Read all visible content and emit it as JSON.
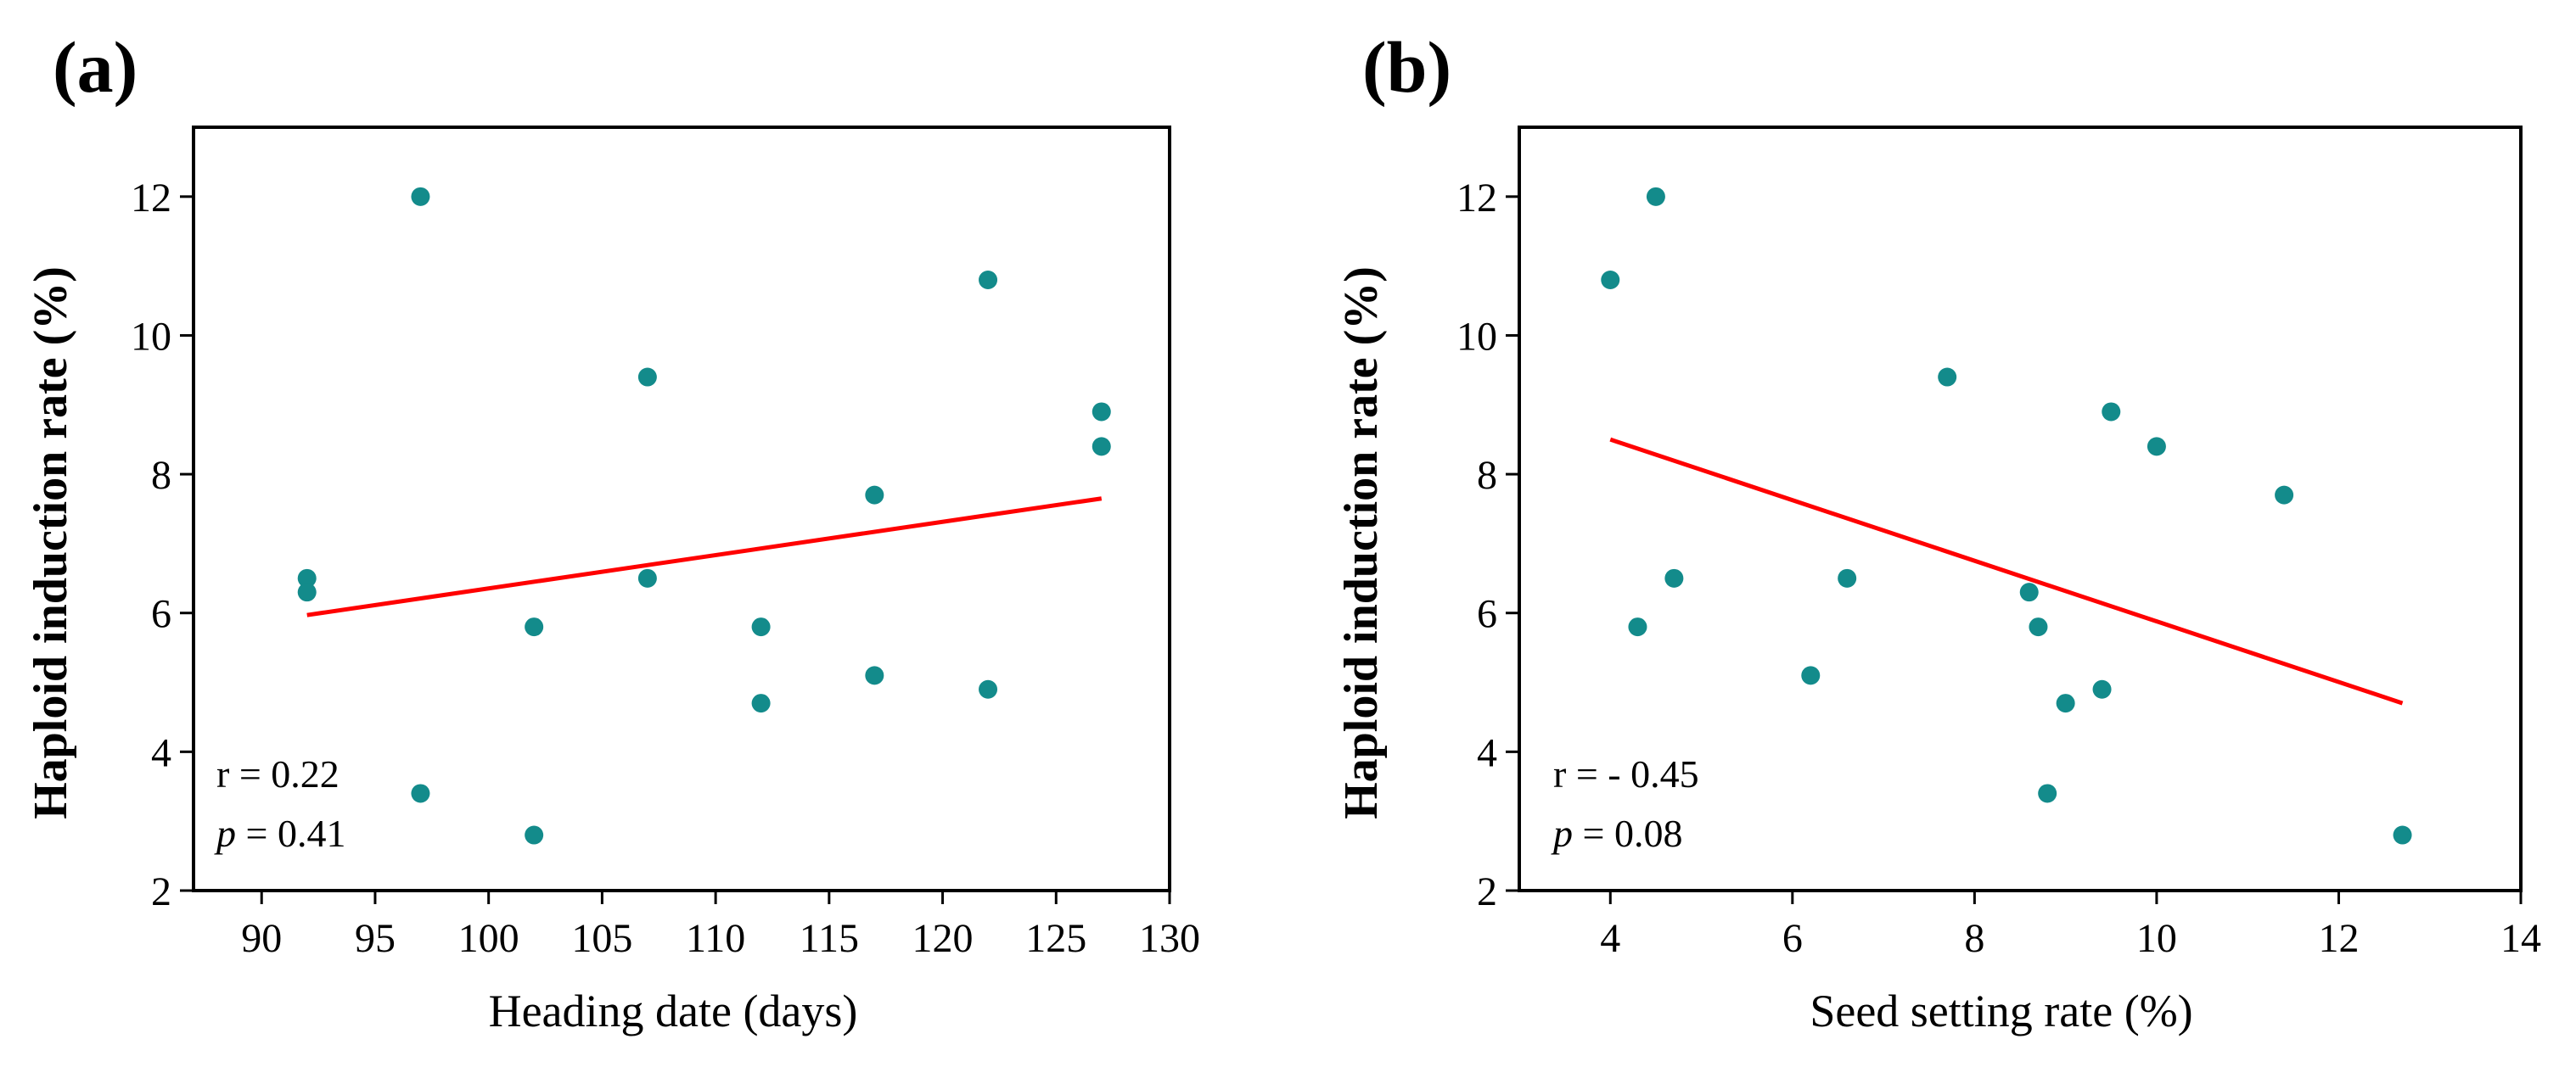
{
  "chart_data": [
    {
      "type": "scatter",
      "panel_label": "(a)",
      "xlabel": "Heading date (days)",
      "ylabel": "Haploid induction rate (%)",
      "xlim": [
        87,
        130
      ],
      "ylim": [
        2,
        13
      ],
      "xticks": [
        90,
        95,
        100,
        105,
        110,
        115,
        120,
        125,
        130
      ],
      "yticks": [
        2,
        4,
        6,
        8,
        10,
        12
      ],
      "point_color": "#138b8b",
      "line_color": "#ff0000",
      "points": [
        {
          "x": 92,
          "y": 6.5
        },
        {
          "x": 92,
          "y": 6.3
        },
        {
          "x": 97,
          "y": 12.0
        },
        {
          "x": 97,
          "y": 3.4
        },
        {
          "x": 102,
          "y": 5.8
        },
        {
          "x": 102,
          "y": 2.8
        },
        {
          "x": 107,
          "y": 9.4
        },
        {
          "x": 107,
          "y": 6.5
        },
        {
          "x": 112,
          "y": 5.8
        },
        {
          "x": 112,
          "y": 4.7
        },
        {
          "x": 117,
          "y": 7.7
        },
        {
          "x": 117,
          "y": 5.1
        },
        {
          "x": 122,
          "y": 10.8
        },
        {
          "x": 122,
          "y": 4.9
        },
        {
          "x": 127,
          "y": 8.9
        },
        {
          "x": 127,
          "y": 8.4
        }
      ],
      "trendline": {
        "x": [
          92,
          127
        ],
        "y": [
          5.97,
          7.65
        ]
      },
      "annotation": {
        "r_text": "r = 0.22",
        "p_italic": "p",
        "p_text": " = 0.41"
      }
    },
    {
      "type": "scatter",
      "panel_label": "(b)",
      "xlabel": "Seed setting rate (%)",
      "ylabel": "Haploid induction rate (%)",
      "xlim": [
        3,
        14
      ],
      "ylim": [
        2,
        13
      ],
      "xticks": [
        4,
        6,
        8,
        10,
        12,
        14
      ],
      "yticks": [
        2,
        4,
        6,
        8,
        10,
        12
      ],
      "point_color": "#138b8b",
      "line_color": "#ff0000",
      "points": [
        {
          "x": 4.0,
          "y": 10.8
        },
        {
          "x": 4.5,
          "y": 12.0
        },
        {
          "x": 4.3,
          "y": 5.8
        },
        {
          "x": 4.7,
          "y": 6.5
        },
        {
          "x": 6.2,
          "y": 5.1
        },
        {
          "x": 6.6,
          "y": 6.5
        },
        {
          "x": 7.7,
          "y": 9.4
        },
        {
          "x": 8.6,
          "y": 6.3
        },
        {
          "x": 8.7,
          "y": 5.8
        },
        {
          "x": 8.8,
          "y": 3.4
        },
        {
          "x": 9.0,
          "y": 4.7
        },
        {
          "x": 9.4,
          "y": 4.9
        },
        {
          "x": 9.5,
          "y": 8.9
        },
        {
          "x": 10.0,
          "y": 8.4
        },
        {
          "x": 11.4,
          "y": 7.7
        },
        {
          "x": 12.7,
          "y": 2.8
        }
      ],
      "trendline": {
        "x": [
          4.0,
          12.7
        ],
        "y": [
          8.5,
          4.7
        ]
      },
      "annotation": {
        "r_text": "r = - 0.45",
        "p_italic": "p",
        "p_text": " = 0.08"
      }
    }
  ]
}
